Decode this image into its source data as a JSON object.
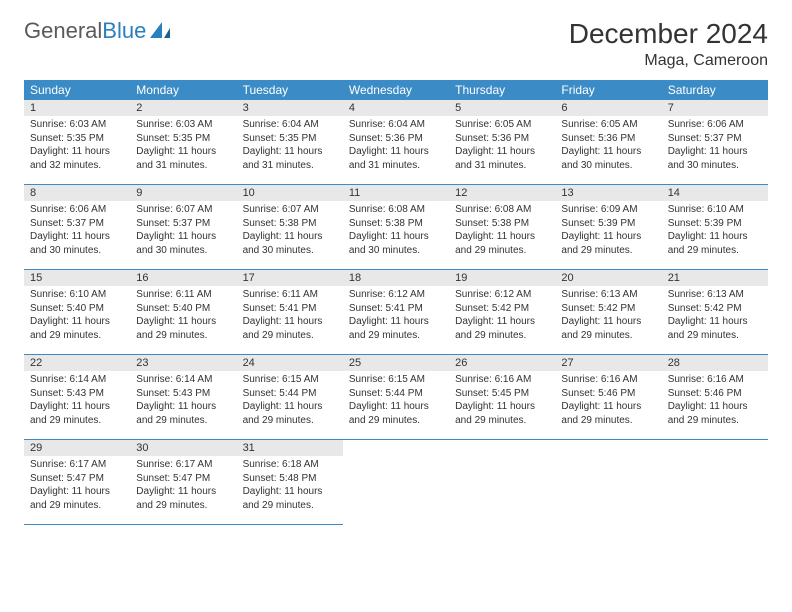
{
  "brand": {
    "part1": "General",
    "part2": "Blue"
  },
  "title": "December 2024",
  "location": "Maga, Cameroon",
  "colors": {
    "header_bg": "#3b8bc6",
    "header_text": "#ffffff",
    "daynum_bg": "#e8e8e8",
    "border": "#3b8bc6",
    "text": "#333333",
    "logo_gray": "#5a5a5a",
    "logo_blue": "#2a7fbf"
  },
  "day_headers": [
    "Sunday",
    "Monday",
    "Tuesday",
    "Wednesday",
    "Thursday",
    "Friday",
    "Saturday"
  ],
  "days": [
    {
      "n": "1",
      "sr": "6:03 AM",
      "ss": "5:35 PM",
      "dl": "11 hours and 32 minutes."
    },
    {
      "n": "2",
      "sr": "6:03 AM",
      "ss": "5:35 PM",
      "dl": "11 hours and 31 minutes."
    },
    {
      "n": "3",
      "sr": "6:04 AM",
      "ss": "5:35 PM",
      "dl": "11 hours and 31 minutes."
    },
    {
      "n": "4",
      "sr": "6:04 AM",
      "ss": "5:36 PM",
      "dl": "11 hours and 31 minutes."
    },
    {
      "n": "5",
      "sr": "6:05 AM",
      "ss": "5:36 PM",
      "dl": "11 hours and 31 minutes."
    },
    {
      "n": "6",
      "sr": "6:05 AM",
      "ss": "5:36 PM",
      "dl": "11 hours and 30 minutes."
    },
    {
      "n": "7",
      "sr": "6:06 AM",
      "ss": "5:37 PM",
      "dl": "11 hours and 30 minutes."
    },
    {
      "n": "8",
      "sr": "6:06 AM",
      "ss": "5:37 PM",
      "dl": "11 hours and 30 minutes."
    },
    {
      "n": "9",
      "sr": "6:07 AM",
      "ss": "5:37 PM",
      "dl": "11 hours and 30 minutes."
    },
    {
      "n": "10",
      "sr": "6:07 AM",
      "ss": "5:38 PM",
      "dl": "11 hours and 30 minutes."
    },
    {
      "n": "11",
      "sr": "6:08 AM",
      "ss": "5:38 PM",
      "dl": "11 hours and 30 minutes."
    },
    {
      "n": "12",
      "sr": "6:08 AM",
      "ss": "5:38 PM",
      "dl": "11 hours and 29 minutes."
    },
    {
      "n": "13",
      "sr": "6:09 AM",
      "ss": "5:39 PM",
      "dl": "11 hours and 29 minutes."
    },
    {
      "n": "14",
      "sr": "6:10 AM",
      "ss": "5:39 PM",
      "dl": "11 hours and 29 minutes."
    },
    {
      "n": "15",
      "sr": "6:10 AM",
      "ss": "5:40 PM",
      "dl": "11 hours and 29 minutes."
    },
    {
      "n": "16",
      "sr": "6:11 AM",
      "ss": "5:40 PM",
      "dl": "11 hours and 29 minutes."
    },
    {
      "n": "17",
      "sr": "6:11 AM",
      "ss": "5:41 PM",
      "dl": "11 hours and 29 minutes."
    },
    {
      "n": "18",
      "sr": "6:12 AM",
      "ss": "5:41 PM",
      "dl": "11 hours and 29 minutes."
    },
    {
      "n": "19",
      "sr": "6:12 AM",
      "ss": "5:42 PM",
      "dl": "11 hours and 29 minutes."
    },
    {
      "n": "20",
      "sr": "6:13 AM",
      "ss": "5:42 PM",
      "dl": "11 hours and 29 minutes."
    },
    {
      "n": "21",
      "sr": "6:13 AM",
      "ss": "5:42 PM",
      "dl": "11 hours and 29 minutes."
    },
    {
      "n": "22",
      "sr": "6:14 AM",
      "ss": "5:43 PM",
      "dl": "11 hours and 29 minutes."
    },
    {
      "n": "23",
      "sr": "6:14 AM",
      "ss": "5:43 PM",
      "dl": "11 hours and 29 minutes."
    },
    {
      "n": "24",
      "sr": "6:15 AM",
      "ss": "5:44 PM",
      "dl": "11 hours and 29 minutes."
    },
    {
      "n": "25",
      "sr": "6:15 AM",
      "ss": "5:44 PM",
      "dl": "11 hours and 29 minutes."
    },
    {
      "n": "26",
      "sr": "6:16 AM",
      "ss": "5:45 PM",
      "dl": "11 hours and 29 minutes."
    },
    {
      "n": "27",
      "sr": "6:16 AM",
      "ss": "5:46 PM",
      "dl": "11 hours and 29 minutes."
    },
    {
      "n": "28",
      "sr": "6:16 AM",
      "ss": "5:46 PM",
      "dl": "11 hours and 29 minutes."
    },
    {
      "n": "29",
      "sr": "6:17 AM",
      "ss": "5:47 PM",
      "dl": "11 hours and 29 minutes."
    },
    {
      "n": "30",
      "sr": "6:17 AM",
      "ss": "5:47 PM",
      "dl": "11 hours and 29 minutes."
    },
    {
      "n": "31",
      "sr": "6:18 AM",
      "ss": "5:48 PM",
      "dl": "11 hours and 29 minutes."
    }
  ],
  "labels": {
    "sunrise": "Sunrise:",
    "sunset": "Sunset:",
    "daylight": "Daylight:"
  },
  "grid": {
    "rows": 5,
    "cols": 7,
    "start_offset": 0
  }
}
